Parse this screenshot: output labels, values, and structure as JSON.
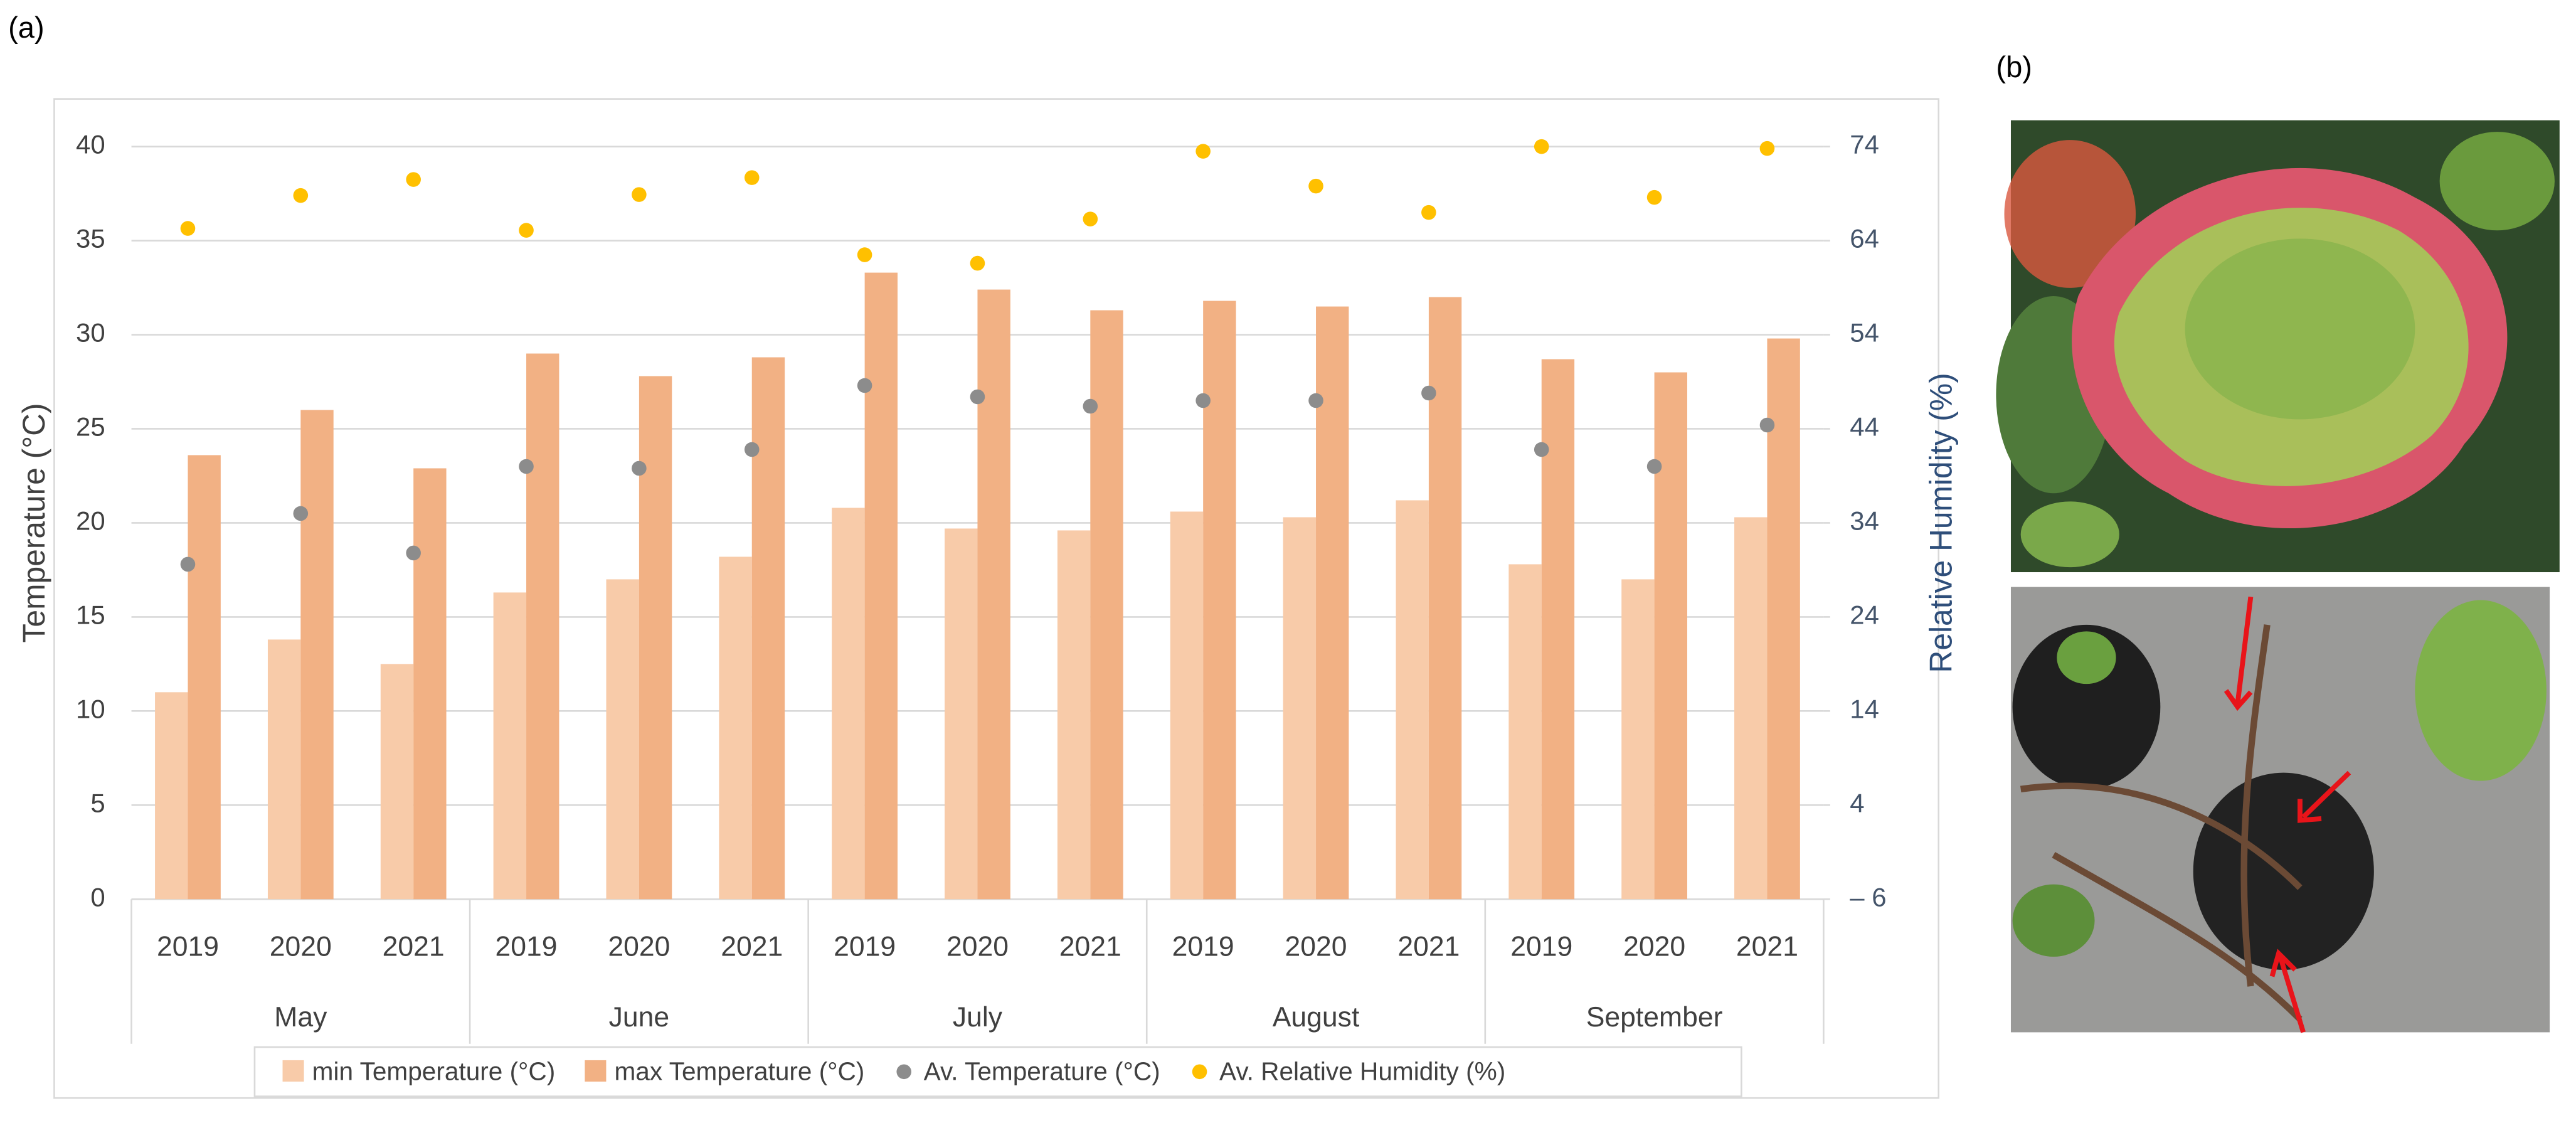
{
  "panel_labels": [
    "(a)",
    "(b)"
  ],
  "chart_data": {
    "type": "bar",
    "ylabel": "Temperature (°C)",
    "y2label": "Relative Humidity (%)",
    "categories": [
      "2019",
      "2020",
      "2021",
      "2019",
      "2020",
      "2021",
      "2019",
      "2020",
      "2021",
      "2019",
      "2020",
      "2021",
      "2019",
      "2020",
      "2021"
    ],
    "groups": [
      "May",
      "June",
      "July",
      "August",
      "September"
    ],
    "ylim": [
      0,
      40
    ],
    "yticks": [
      0,
      5,
      10,
      15,
      20,
      25,
      30,
      35,
      40
    ],
    "y2lim": [
      -6,
      74
    ],
    "y2ticks": [
      {
        "value": -6,
        "label": "– 6"
      },
      4,
      14,
      24,
      34,
      44,
      54,
      64,
      74
    ],
    "grid": true,
    "legend": "bottom",
    "series": [
      {
        "name": "min Temperature (°C)",
        "type": "bar",
        "color": "#f8cba9",
        "values": [
          11.0,
          13.8,
          12.5,
          16.3,
          17.0,
          18.2,
          20.8,
          19.7,
          19.6,
          20.6,
          20.3,
          21.2,
          17.8,
          17.0,
          20.3
        ]
      },
      {
        "name": "max Temperature (°C)",
        "type": "bar",
        "color": "#f2b184",
        "values": [
          23.6,
          26.0,
          22.9,
          29.0,
          27.8,
          28.8,
          33.3,
          32.4,
          31.3,
          31.8,
          31.5,
          32.0,
          28.7,
          28.0,
          29.8
        ]
      },
      {
        "name": "Av. Temperature (°C)",
        "type": "scatter",
        "color": "#8c8c8c",
        "values": [
          17.8,
          20.5,
          18.4,
          23.0,
          22.9,
          23.9,
          27.3,
          26.7,
          26.2,
          26.5,
          26.5,
          26.9,
          23.9,
          23.0,
          25.2
        ]
      },
      {
        "name": "Av. Relative Humidity (%)",
        "type": "scatter",
        "axis": "y2",
        "color": "#ffc000",
        "values": [
          65.3,
          68.8,
          70.5,
          65.1,
          68.9,
          70.7,
          62.5,
          61.6,
          66.3,
          73.5,
          69.8,
          67.0,
          74.0,
          68.6,
          73.8
        ]
      }
    ]
  }
}
